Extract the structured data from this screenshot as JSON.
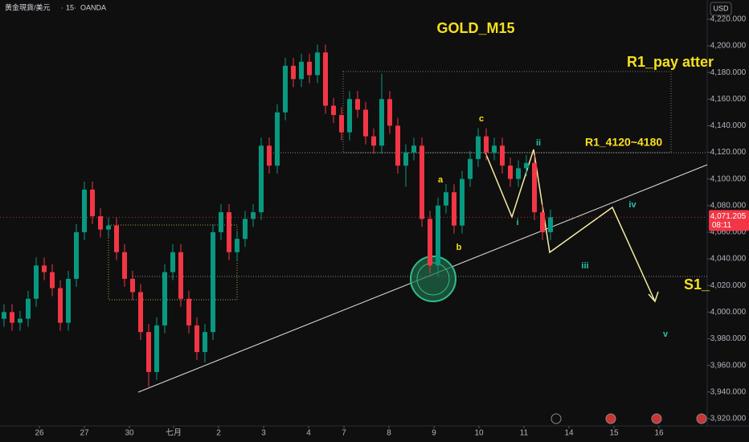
{
  "chart_data": {
    "type": "candlestick",
    "symbol": "黄金現貨/美元",
    "interval": "15",
    "source": "OANDA",
    "currency": "USD",
    "title": "GOLD_M15",
    "annotations": [
      "R1_pay atter",
      "R1_4120~4180",
      "S1_",
      "a",
      "b",
      "c",
      "i",
      "ii",
      "iii",
      "iv",
      "v"
    ],
    "up_color": "#089981",
    "down_color": "#f23645",
    "x": [
      0,
      1,
      2,
      3,
      4,
      5,
      6,
      7,
      8,
      9,
      10,
      11,
      12,
      13,
      14,
      15,
      16,
      17,
      18,
      19,
      20,
      21,
      22,
      23,
      24,
      25,
      26,
      27,
      28,
      29,
      30,
      31,
      32,
      33,
      34,
      35,
      36,
      37,
      38,
      39,
      40,
      41,
      42,
      43,
      44,
      45,
      46,
      47,
      48,
      49,
      50,
      51,
      52,
      53,
      54,
      55,
      56,
      57,
      58,
      59,
      60,
      61,
      62,
      63,
      64,
      65,
      66,
      67,
      68
    ],
    "open": [
      3995,
      4000,
      3992,
      3995,
      4010,
      4035,
      4030,
      4018,
      3992,
      4025,
      4060,
      4092,
      4072,
      4062,
      4065,
      4045,
      4025,
      4015,
      3985,
      3955,
      3990,
      4030,
      4045,
      4010,
      3990,
      3970,
      3985,
      4060,
      4075,
      4045,
      4055,
      4070,
      4075,
      4125,
      4110,
      4150,
      4185,
      4175,
      4188,
      4178,
      4195,
      4155,
      4148,
      4135,
      4160,
      4152,
      4132,
      4125,
      4160,
      4140,
      4110,
      4120,
      4125,
      4070,
      4035,
      4080,
      4090,
      4065,
      4100,
      4115,
      4132,
      4120,
      4125,
      4110,
      4100,
      4108,
      4112,
      4075,
      4060
    ],
    "high": [
      4006,
      4006,
      4001,
      4016,
      4041,
      4041,
      4036,
      4024,
      4031,
      4066,
      4098,
      4098,
      4078,
      4071,
      4071,
      4051,
      4031,
      4021,
      3991,
      3996,
      4036,
      4051,
      4051,
      4016,
      3996,
      3991,
      4066,
      4081,
      4081,
      4061,
      4076,
      4081,
      4131,
      4131,
      4156,
      4191,
      4191,
      4194,
      4194,
      4201,
      4201,
      4161,
      4154,
      4166,
      4166,
      4158,
      4138,
      4179,
      4166,
      4146,
      4126,
      4131,
      4131,
      4076,
      4086,
      4096,
      4096,
      4106,
      4121,
      4138,
      4138,
      4131,
      4131,
      4116,
      4114,
      4118,
      4118,
      4081,
      4077
    ],
    "low": [
      3989,
      3986,
      3986,
      3989,
      4004,
      4024,
      4012,
      3986,
      3986,
      4019,
      4054,
      4066,
      4056,
      4056,
      4039,
      4019,
      4009,
      3979,
      3944,
      3949,
      3984,
      4024,
      4004,
      3984,
      3964,
      3962,
      3979,
      4054,
      4039,
      4039,
      4049,
      4064,
      4069,
      4104,
      4104,
      4144,
      4169,
      4169,
      4172,
      4172,
      4149,
      4142,
      4129,
      4129,
      4146,
      4126,
      4119,
      4119,
      4134,
      4104,
      4094,
      4114,
      4064,
      4029,
      4027,
      4074,
      4059,
      4059,
      4094,
      4109,
      4114,
      4114,
      4104,
      4094,
      4094,
      4102,
      4069,
      4054,
      4054
    ],
    "close": [
      4000,
      3992,
      3995,
      4010,
      4035,
      4030,
      4018,
      3992,
      4025,
      4060,
      4092,
      4072,
      4062,
      4065,
      4045,
      4025,
      4015,
      3985,
      3955,
      3990,
      4030,
      4045,
      4010,
      3990,
      3970,
      3985,
      4060,
      4075,
      4045,
      4055,
      4070,
      4075,
      4125,
      4110,
      4150,
      4185,
      4175,
      4188,
      4178,
      4195,
      4155,
      4148,
      4135,
      4160,
      4152,
      4132,
      4125,
      4160,
      4140,
      4110,
      4120,
      4125,
      4070,
      4035,
      4080,
      4090,
      4065,
      4100,
      4115,
      4132,
      4120,
      4125,
      4110,
      4100,
      4108,
      4112,
      4075,
      4060,
      4071.205
    ],
    "last_price": {
      "value": 4071.205,
      "label": "4,071.205"
    },
    "countdown": "08:11",
    "xlim": [
      -0.5,
      87.5
    ],
    "xticks": [
      {
        "value": 4.4,
        "label": "26"
      },
      {
        "value": 10,
        "label": "27"
      },
      {
        "value": 15.6,
        "label": "30"
      },
      {
        "value": 21.1,
        "label": "七月"
      },
      {
        "value": 26.7,
        "label": "2"
      },
      {
        "value": 32.3,
        "label": "3"
      },
      {
        "value": 37.9,
        "label": "4"
      },
      {
        "value": 42.3,
        "label": "7"
      },
      {
        "value": 47.9,
        "label": "8"
      },
      {
        "value": 53.5,
        "label": "9"
      },
      {
        "value": 59.1,
        "label": "10"
      },
      {
        "value": 64.7,
        "label": "11"
      },
      {
        "value": 70.3,
        "label": "14"
      },
      {
        "value": 75.9,
        "label": "15"
      },
      {
        "value": 81.5,
        "label": "16"
      }
    ],
    "ylim": [
      3914.5,
      4234.4
    ],
    "yticks": [
      {
        "value": 3920,
        "label": "3,920.000"
      },
      {
        "value": 3940,
        "label": "3,940.000"
      },
      {
        "value": 3960,
        "label": "3,960.000"
      },
      {
        "value": 3980,
        "label": "3,980.000"
      },
      {
        "value": 4000,
        "label": "4,000.000"
      },
      {
        "value": 4020,
        "label": "4,020.000"
      },
      {
        "value": 4040,
        "label": "4,040.000"
      },
      {
        "value": 4060,
        "label": "4,060.000"
      },
      {
        "value": 4080,
        "label": "4,080.000"
      },
      {
        "value": 4100,
        "label": "4,100.000"
      },
      {
        "value": 4120,
        "label": "4,120.000"
      },
      {
        "value": 4140,
        "label": "4,140.000"
      },
      {
        "value": 4160,
        "label": "4,160.000"
      },
      {
        "value": 4180,
        "label": "4,180.000"
      },
      {
        "value": 4200,
        "label": "4,200.000"
      },
      {
        "value": 4220,
        "label": "4,220.000"
      }
    ]
  }
}
